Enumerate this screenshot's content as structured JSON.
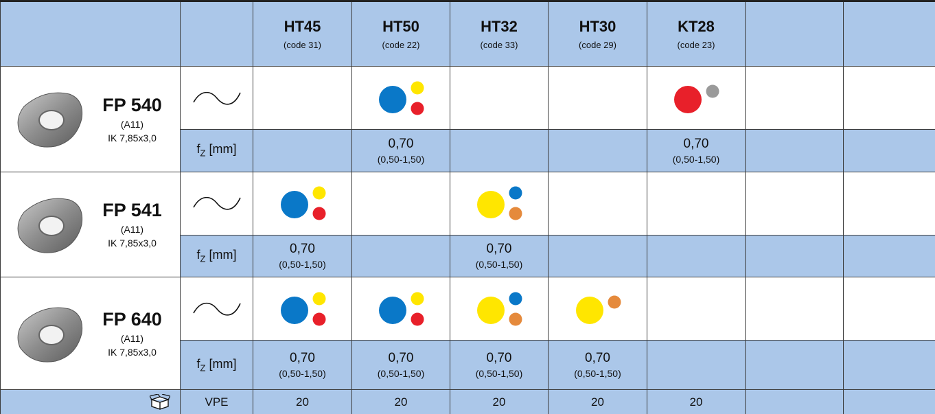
{
  "header": {
    "columns": [
      {
        "name": "HT45",
        "code": "(code 31)"
      },
      {
        "name": "HT50",
        "code": "(code 22)"
      },
      {
        "name": "HT32",
        "code": "(code 33)"
      },
      {
        "name": "HT30",
        "code": "(code 29)"
      },
      {
        "name": "KT28",
        "code": "(code 23)"
      }
    ]
  },
  "fz_label": {
    "symbol": "f",
    "subscript": "Z",
    "unit": "[mm]"
  },
  "products": [
    {
      "name": "FP 540",
      "spec": "(A11)",
      "size": "IK 7,85x3,0",
      "feeds": [
        null,
        {
          "value": "0,70",
          "range": "(0,50-1,50)"
        },
        null,
        null,
        {
          "value": "0,70",
          "range": "(0,50-1,50)"
        }
      ]
    },
    {
      "name": "FP 541",
      "spec": "(A11)",
      "size": "IK 7,85x3,0",
      "feeds": [
        {
          "value": "0,70",
          "range": "(0,50-1,50)"
        },
        null,
        {
          "value": "0,70",
          "range": "(0,50-1,50)"
        },
        null,
        null
      ]
    },
    {
      "name": "FP 640",
      "spec": "(A11)",
      "size": "IK 7,85x3,0",
      "feeds": [
        {
          "value": "0,70",
          "range": "(0,50-1,50)"
        },
        {
          "value": "0,70",
          "range": "(0,50-1,50)"
        },
        {
          "value": "0,70",
          "range": "(0,50-1,50)"
        },
        {
          "value": "0,70",
          "range": "(0,50-1,50)"
        },
        null
      ]
    }
  ],
  "footer": {
    "label": "VPE",
    "values": [
      "20",
      "20",
      "20",
      "20",
      "20"
    ]
  }
}
